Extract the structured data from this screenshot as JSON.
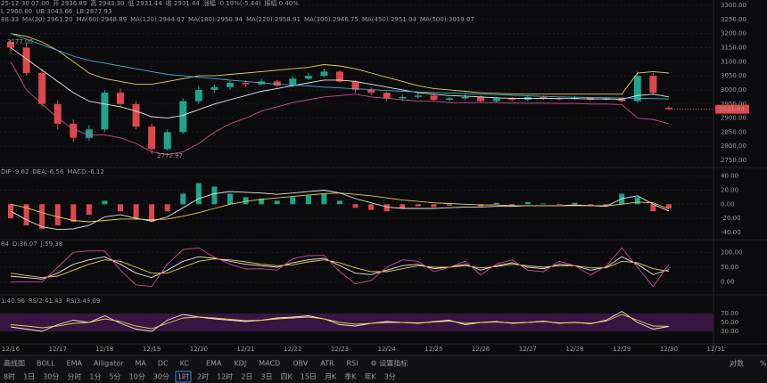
{
  "chart_data": [
    {
      "type": "candlestick",
      "header_rows": [
        [
          {
            "text": "25-12-30 07:00",
            "color": "#9a9a9a"
          },
          {
            "text": "开 2936.89",
            "color": "#9a9a9a"
          },
          {
            "text": "高 2943.30",
            "color": "#9a9a9a"
          },
          {
            "text": "低 2931.44",
            "color": "#9a9a9a"
          },
          {
            "text": "收 2931.44",
            "color": "#9a9a9a"
          },
          {
            "text": "涨幅 -0.19%(-5.44)",
            "color": "#e0474c"
          },
          {
            "text": "振幅 0.40%",
            "color": "#9a9a9a"
          }
        ],
        [
          {
            "text": "L 2960.80",
            "color": "#e8e8e8"
          },
          {
            "text": "UB:3043.66",
            "color": "#e6d24a"
          },
          {
            "text": "LB:2877.93",
            "color": "#d04b9a"
          }
        ],
        [
          {
            "text": "88.33",
            "color": "#e8e8e8"
          },
          {
            "text": "MA(30):2961.20",
            "color": "#e6d24a"
          },
          {
            "text": "MA(60):2948.89",
            "color": "#d04b9a"
          },
          {
            "text": "MA(120):2944.07",
            "color": "#36b3d9"
          },
          {
            "text": "MA(180):2950.94",
            "color": "#e8e8e8"
          },
          {
            "text": "MA(220):2958.91",
            "color": "#e6d24a"
          },
          {
            "text": "MA(300):2946.75",
            "color": "#d04b9a"
          },
          {
            "text": "MA(450):2951.04",
            "color": "#e08a2c"
          },
          {
            "text": "MA(500):3019.07",
            "color": "#a98be0"
          }
        ]
      ],
      "ylim": [
        2728,
        3319
      ],
      "yticks": [
        {
          "value": 2750,
          "label": "2750.00"
        },
        {
          "value": 2800,
          "label": "2800.00"
        },
        {
          "value": 2850,
          "label": "2850.00"
        },
        {
          "value": 2900,
          "label": "2900.00"
        },
        {
          "value": 2950,
          "label": "2950.00"
        },
        {
          "value": 3000,
          "label": "3000.00"
        },
        {
          "value": 3050,
          "label": "3050.00"
        },
        {
          "value": 3100,
          "label": "3100.00"
        },
        {
          "value": 3150,
          "label": "3150.00"
        },
        {
          "value": 3200,
          "label": "3200.00"
        },
        {
          "value": 3250,
          "label": "3250.00"
        },
        {
          "value": 3300,
          "label": "3300.00"
        }
      ],
      "up_color": "#1fa58c",
      "down_color": "#e0474c",
      "open": [
        3170,
        3150,
        3060,
        2950,
        2880,
        2830,
        2860,
        2990,
        2950,
        2870,
        2790,
        2850,
        2960,
        3000,
        3010,
        3025,
        3020,
        3030,
        3015,
        3040,
        3050,
        3065,
        3030,
        3000,
        2990,
        2970,
        2975,
        2980,
        2965,
        2970,
        2975,
        2960,
        2970,
        2965,
        2975,
        2970,
        2968,
        2972,
        2965,
        2970,
        2960,
        3050,
        2936.89
      ],
      "high": [
        3177,
        3165,
        3075,
        2965,
        2895,
        2875,
        3000,
        3005,
        2960,
        2880,
        2860,
        2970,
        3015,
        3020,
        3035,
        3035,
        3040,
        3035,
        3050,
        3060,
        3075,
        3070,
        3035,
        3010,
        2995,
        2985,
        2990,
        2985,
        2975,
        2985,
        2980,
        2975,
        2975,
        2980,
        2980,
        2975,
        2978,
        2975,
        2975,
        2975,
        3065,
        3060,
        2943.3
      ],
      "low": [
        3130,
        3050,
        2940,
        2860,
        2815,
        2820,
        2850,
        2940,
        2860,
        2772.97,
        2785,
        2845,
        2950,
        2990,
        3000,
        3010,
        3015,
        3010,
        3010,
        3035,
        3045,
        3025,
        2990,
        2980,
        2960,
        2960,
        2970,
        2960,
        2958,
        2965,
        2955,
        2955,
        2960,
        2960,
        2965,
        2962,
        2965,
        2960,
        2962,
        2955,
        2955,
        2985,
        2931.44
      ],
      "close": [
        3150,
        3060,
        2950,
        2880,
        2830,
        2860,
        2990,
        2950,
        2870,
        2790,
        2850,
        2960,
        3000,
        3010,
        3025,
        3020,
        3030,
        3015,
        3040,
        3050,
        3065,
        3030,
        3000,
        2990,
        2970,
        2975,
        2980,
        2965,
        2970,
        2975,
        2960,
        2970,
        2965,
        2975,
        2970,
        2968,
        2972,
        2965,
        2970,
        2960,
        3050,
        2990,
        2931.44
      ],
      "lines": [
        {
          "color": "#e6d24a",
          "values": [
            3200,
            3190,
            3170,
            3140,
            3100,
            3060,
            3040,
            3030,
            3020,
            3020,
            3030,
            3040,
            3050,
            3050,
            3055,
            3060,
            3065,
            3070,
            3075,
            3080,
            3090,
            3085,
            3075,
            3060,
            3045,
            3030,
            3015,
            3005,
            3000,
            2995,
            2990,
            2988,
            2986,
            2985,
            2985,
            2985,
            2985,
            2985,
            2985,
            2985,
            3060,
            3065,
            3060
          ]
        },
        {
          "color": "#e8e8e8",
          "values": [
            3150,
            3110,
            3070,
            3030,
            2990,
            2960,
            2950,
            2940,
            2925,
            2905,
            2900,
            2910,
            2930,
            2950,
            2965,
            2980,
            2995,
            3005,
            3015,
            3025,
            3035,
            3035,
            3030,
            3020,
            3010,
            3000,
            2990,
            2985,
            2980,
            2978,
            2975,
            2972,
            2970,
            2970,
            2970,
            2969,
            2969,
            2968,
            2968,
            2967,
            2980,
            2985,
            2975
          ]
        },
        {
          "color": "#d04b9a",
          "values": [
            3100,
            3000,
            2950,
            2900,
            2860,
            2840,
            2840,
            2830,
            2810,
            2780,
            2770,
            2780,
            2810,
            2850,
            2880,
            2900,
            2925,
            2940,
            2955,
            2965,
            2975,
            2980,
            2985,
            2975,
            2970,
            2965,
            2960,
            2960,
            2955,
            2955,
            2955,
            2955,
            2953,
            2953,
            2953,
            2952,
            2952,
            2950,
            2950,
            2948,
            2900,
            2895,
            2880
          ]
        },
        {
          "color": "#36b3d9",
          "values": [
            3200,
            3180,
            3160,
            3140,
            3120,
            3105,
            3095,
            3085,
            3075,
            3065,
            3055,
            3050,
            3045,
            3040,
            3035,
            3030,
            3025,
            3020,
            3017,
            3014,
            3010,
            3007,
            3004,
            3001,
            2998,
            2995,
            2993,
            2991,
            2989,
            2987,
            2985,
            2983,
            2981,
            2979,
            2977,
            2975,
            2974,
            2973,
            2972,
            2971,
            2970,
            2969,
            2968
          ]
        }
      ],
      "annotations": [
        {
          "text": "3177.00"
        },
        {
          "text": "2772.97"
        }
      ]
    },
    {
      "type": "macd",
      "header_rows": [
        [
          {
            "text": "DIF:-9.62",
            "color": "#e8e8e8"
          },
          {
            "text": "DEA:-6.56",
            "color": "#e6d24a"
          },
          {
            "text": "MACD:-6.12",
            "color": "#d04b9a"
          }
        ]
      ],
      "ylim": [
        -49,
        51
      ],
      "yticks": [
        {
          "value": -40,
          "label": "-40.00"
        },
        {
          "value": -20,
          "label": "-20.00"
        },
        {
          "value": 0,
          "label": "0.00"
        },
        {
          "value": 20,
          "label": "20.00"
        },
        {
          "value": 40,
          "label": "40.00"
        }
      ],
      "up_color": "#1fa58c",
      "down_color": "#e0474c",
      "values": [
        -20,
        -30,
        -35,
        -30,
        -25,
        -15,
        5,
        -10,
        -20,
        -25,
        -10,
        15,
        30,
        25,
        15,
        10,
        8,
        5,
        10,
        12,
        15,
        5,
        -5,
        -8,
        -10,
        -6,
        -3,
        -4,
        -2,
        0,
        -3,
        2,
        -2,
        3,
        1,
        -1,
        2,
        -2,
        -3,
        15,
        10,
        -10,
        -6.12
      ],
      "lines": [
        {
          "color": "#e8e8e8",
          "values": [
            -10,
            -22,
            -32,
            -36,
            -35,
            -30,
            -18,
            -15,
            -20,
            -24,
            -18,
            -5,
            8,
            15,
            18,
            17,
            16,
            14,
            16,
            18,
            20,
            16,
            8,
            2,
            -4,
            -6,
            -6,
            -6,
            -5,
            -4,
            -4,
            -3,
            -3,
            -2,
            -2,
            -2,
            -1,
            -2,
            -3,
            8,
            12,
            0,
            -9.62
          ]
        },
        {
          "color": "#e6d24a",
          "values": [
            0,
            -5,
            -12,
            -18,
            -23,
            -25,
            -23,
            -21,
            -21,
            -22,
            -21,
            -17,
            -12,
            -6,
            0,
            4,
            7,
            9,
            11,
            13,
            15,
            16,
            14,
            12,
            9,
            6,
            4,
            2,
            1,
            0,
            -1,
            -1,
            -2,
            -2,
            -2,
            -2,
            -2,
            -2,
            -2,
            0,
            3,
            2,
            -6.56
          ]
        }
      ]
    },
    {
      "type": "line",
      "header_rows": [
        [
          {
            "text": "84",
            "color": "#e8e8e8"
          },
          {
            "text": "D:36.07",
            "color": "#e6d24a"
          },
          {
            "text": "J:59.38",
            "color": "#d04b9a"
          }
        ]
      ],
      "ylim": [
        -40,
        140
      ],
      "yticks": [
        {
          "value": 0,
          "label": "0.00"
        },
        {
          "value": 50,
          "label": "50.00"
        },
        {
          "value": 100,
          "label": "100.00"
        }
      ],
      "lines": [
        {
          "color": "#e8e8e8",
          "values": [
            20,
            15,
            10,
            30,
            60,
            75,
            85,
            60,
            30,
            15,
            40,
            70,
            85,
            80,
            70,
            60,
            55,
            50,
            65,
            75,
            80,
            55,
            30,
            25,
            40,
            55,
            60,
            45,
            50,
            60,
            40,
            55,
            65,
            50,
            45,
            60,
            55,
            40,
            50,
            85,
            60,
            25,
            42
          ]
        },
        {
          "color": "#e6d24a",
          "values": [
            30,
            22,
            15,
            20,
            40,
            60,
            75,
            70,
            50,
            30,
            30,
            50,
            70,
            78,
            75,
            68,
            60,
            55,
            58,
            68,
            75,
            65,
            48,
            35,
            35,
            45,
            55,
            50,
            50,
            55,
            48,
            52,
            60,
            55,
            50,
            55,
            55,
            48,
            48,
            70,
            65,
            45,
            36.07
          ]
        },
        {
          "color": "#d04b9a",
          "values": [
            0,
            1,
            0,
            50,
            100,
            105,
            105,
            40,
            -10,
            -15,
            60,
            110,
            115,
            84,
            60,
            44,
            45,
            40,
            79,
            89,
            90,
            35,
            -6,
            5,
            50,
            75,
            70,
            35,
            50,
            70,
            24,
            61,
            75,
            40,
            35,
            70,
            55,
            24,
            54,
            115,
            50,
            -15,
            59.38
          ]
        }
      ]
    },
    {
      "type": "line",
      "header_rows": [
        [
          {
            "text": "1:40.96",
            "color": "#e8e8e8"
          },
          {
            "text": "RSI2:41.43",
            "color": "#e6d24a"
          },
          {
            "text": "RSI3:43.09",
            "color": "#d04b9a"
          }
        ]
      ],
      "ylim": [
        4,
        106
      ],
      "yticks": [
        {
          "value": 30,
          "label": "30.00"
        },
        {
          "value": 50,
          "label": "50.00"
        },
        {
          "value": 70,
          "label": "70.00"
        }
      ],
      "band_color": "#3a1442",
      "lines": [
        {
          "color": "#e8e8e8",
          "values": [
            40,
            35,
            30,
            45,
            55,
            50,
            65,
            48,
            35,
            30,
            55,
            68,
            62,
            58,
            55,
            52,
            55,
            60,
            62,
            65,
            58,
            45,
            42,
            48,
            52,
            50,
            48,
            52,
            55,
            45,
            50,
            52,
            48,
            50,
            53,
            48,
            50,
            47,
            55,
            75,
            50,
            35,
            40.96
          ]
        },
        {
          "color": "#e6d24a",
          "values": [
            45,
            42,
            38,
            42,
            48,
            50,
            58,
            52,
            42,
            36,
            48,
            60,
            62,
            60,
            57,
            54,
            55,
            58,
            60,
            62,
            58,
            50,
            46,
            48,
            50,
            50,
            49,
            51,
            53,
            48,
            50,
            51,
            49,
            50,
            52,
            49,
            50,
            48,
            53,
            68,
            55,
            42,
            41.43
          ]
        }
      ]
    }
  ],
  "x_axis": {
    "labels": [
      "12/16",
      "12/17",
      "12/18",
      "12/19",
      "12/20",
      "12/21",
      "12/22",
      "12/23",
      "12/24",
      "12/25",
      "12/26",
      "12/27",
      "12/28",
      "12/29",
      "12/30",
      "12/31"
    ]
  },
  "toolbar": {
    "row1_left": [
      {
        "text": "画线图",
        "color": "#cfcfcf"
      },
      {
        "text": "BOLL",
        "color": "#cfcfcf"
      },
      {
        "text": "EMA",
        "color": "#8a8a8a"
      },
      {
        "text": "Alligator",
        "color": "#8a8a8a"
      },
      {
        "text": "MA",
        "color": "#3b82f6"
      },
      {
        "text": "DC",
        "color": "#8a8a8a"
      },
      {
        "text": "KC",
        "color": "#8a8a8a"
      }
    ],
    "row1_mid": [
      {
        "text": "EMA",
        "color": "#8a8a8a"
      },
      {
        "text": "KDJ",
        "color": "#3b82f6"
      },
      {
        "text": "MACD",
        "color": "#3b82f6"
      },
      {
        "text": "OBV",
        "color": "#8a8a8a"
      },
      {
        "text": "ATR",
        "color": "#8a8a8a"
      },
      {
        "text": "RSI",
        "color": "#3b82f6"
      },
      {
        "text": "⚙ 设置指标",
        "color": "#8a8a8a"
      }
    ],
    "row1_right": [
      {
        "text": "对数",
        "color": "#8a8a8a"
      },
      {
        "text": "%",
        "color": "#8a8a8a"
      }
    ],
    "row2": [
      {
        "text": "8时",
        "color": "#cfcfcf"
      },
      {
        "text": "1日",
        "color": "#cfcfcf"
      },
      {
        "text": "30分",
        "color": "#cfcfcf"
      },
      {
        "text": "分时",
        "color": "#cfcfcf"
      },
      {
        "text": "1分",
        "color": "#cfcfcf"
      },
      {
        "text": "5分",
        "color": "#cfcfcf"
      },
      {
        "text": "10分",
        "color": "#cfcfcf"
      },
      {
        "text": "30分",
        "color": "#cfcfcf"
      },
      {
        "text": "1时",
        "color": "#3b82f6"
      },
      {
        "text": "2时",
        "color": "#cfcfcf"
      },
      {
        "text": "12时",
        "color": "#cfcfcf"
      },
      {
        "text": "2日",
        "color": "#cfcfcf"
      },
      {
        "text": "3日",
        "color": "#cfcfcf"
      },
      {
        "text": "四K",
        "color": "#cfcfcf"
      },
      {
        "text": "15日",
        "color": "#cfcfcf"
      },
      {
        "text": "月K",
        "color": "#cfcfcf"
      },
      {
        "text": "季K",
        "color": "#cfcfcf"
      },
      {
        "text": "年K",
        "color": "#cfcfcf"
      },
      {
        "text": "3分",
        "color": "#cfcfcf"
      }
    ]
  }
}
